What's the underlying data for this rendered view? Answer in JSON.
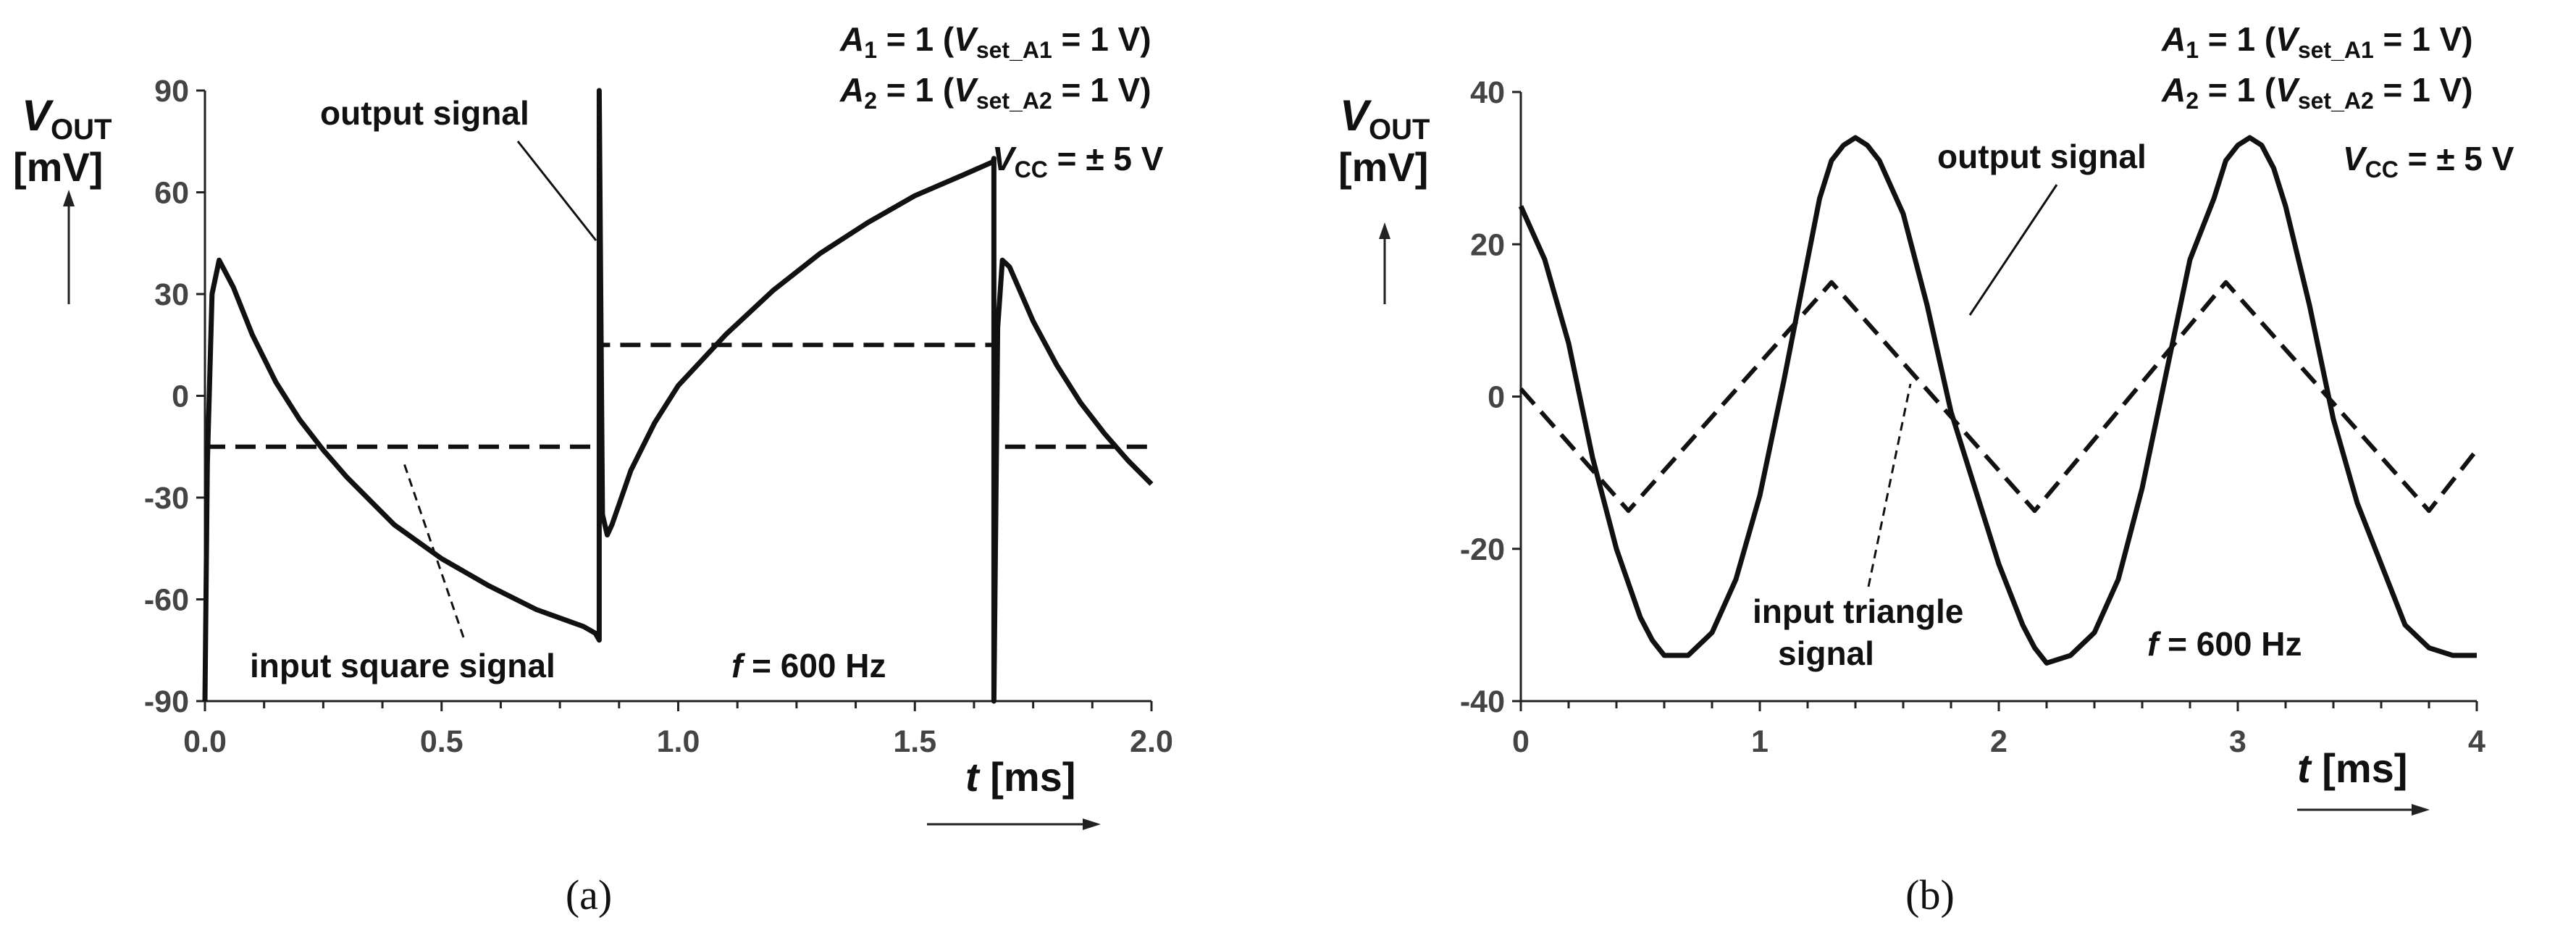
{
  "chart_data": [
    {
      "type": "line",
      "caption": "(a)",
      "xlabel": {
        "var": "t",
        "unit": "[ms]"
      },
      "ylabel": {
        "var": "V",
        "sub": "OUT",
        "unit": "[mV]"
      },
      "xlim": [
        0,
        2.0
      ],
      "ylim": [
        -90,
        90
      ],
      "xticks": [
        0.0,
        0.5,
        1.0,
        1.5,
        2.0
      ],
      "xtick_labels": [
        "0.0",
        "0.5",
        "1.0",
        "1.5",
        "2.0"
      ],
      "yticks": [
        -90,
        -60,
        -30,
        0,
        30,
        60,
        90
      ],
      "ytick_labels": [
        "-90",
        "-60",
        "-30",
        "0",
        "30",
        "60",
        "90"
      ],
      "conditions": [
        {
          "a": "A",
          "asub": "1",
          "eq": " = 1 (",
          "v": "V",
          "vsub": "set_A1",
          "tail": " = 1 V)"
        },
        {
          "a": "A",
          "asub": "2",
          "eq": " = 1 (",
          "v": "V",
          "vsub": "set_A2",
          "tail": " = 1 V)"
        }
      ],
      "vcc": {
        "v": "V",
        "sub": "CC",
        "tail": " = ± 5 V"
      },
      "freq": {
        "f": "f",
        "tail": " = 600 Hz"
      },
      "annotations": [
        {
          "text": "output signal",
          "target_x": 0.833,
          "target_y": 30
        },
        {
          "text": "input square signal",
          "target_x": 0.42,
          "target_y": -14
        }
      ],
      "series": [
        {
          "name": "output signal",
          "style": "solid",
          "x": [
            0,
            0.005,
            0.015,
            0.03,
            0.06,
            0.1,
            0.15,
            0.2,
            0.25,
            0.3,
            0.4,
            0.5,
            0.6,
            0.7,
            0.8,
            0.825,
            0.833,
            0.833,
            0.838,
            0.84,
            0.85,
            0.86,
            0.88,
            0.9,
            0.95,
            1.0,
            1.1,
            1.2,
            1.3,
            1.4,
            1.5,
            1.6,
            1.665,
            1.667,
            1.667,
            1.675,
            1.685,
            1.7,
            1.75,
            1.8,
            1.85,
            1.9,
            1.95,
            2.0
          ],
          "y": [
            -90,
            -20,
            30,
            40,
            32,
            18,
            4,
            -7,
            -16,
            -24,
            -38,
            -48,
            -56,
            -63,
            -68,
            -70,
            -72,
            90,
            0,
            -35,
            -41,
            -38,
            -30,
            -22,
            -8,
            3,
            18,
            31,
            42,
            51,
            59,
            65,
            69,
            70,
            -90,
            20,
            40,
            38,
            22,
            9,
            -2,
            -11,
            -19,
            -26
          ]
        },
        {
          "name": "input square signal",
          "style": "dashed",
          "x": [
            0,
            0.833,
            0.833,
            1.667,
            1.667,
            2.0
          ],
          "y": [
            -15,
            -15,
            15,
            15,
            -15,
            -15
          ]
        }
      ]
    },
    {
      "type": "line",
      "caption": "(b)",
      "xlabel": {
        "var": "t",
        "unit": "[ms]"
      },
      "ylabel": {
        "var": "V",
        "sub": "OUT",
        "unit": "[mV]"
      },
      "xlim": [
        0,
        4
      ],
      "ylim": [
        -40,
        40
      ],
      "xticks": [
        0,
        1,
        2,
        3,
        4
      ],
      "xtick_labels": [
        "0",
        "1",
        "2",
        "3",
        "4"
      ],
      "yticks": [
        -40,
        -20,
        0,
        20,
        40
      ],
      "ytick_labels": [
        "-40",
        "-20",
        "0",
        "20",
        "40"
      ],
      "conditions": [
        {
          "a": "A",
          "asub": "1",
          "eq": " = 1 (",
          "v": "V",
          "vsub": "set_A1",
          "tail": " = 1 V)"
        },
        {
          "a": "A",
          "asub": "2",
          "eq": " = 1 (",
          "v": "V",
          "vsub": "set_A2",
          "tail": " = 1 V)"
        }
      ],
      "vcc": {
        "v": "V",
        "sub": "CC",
        "tail": " = ± 5 V"
      },
      "freq": {
        "f": "f",
        "tail": " = 600 Hz"
      },
      "annotations": [
        {
          "text": "output signal",
          "target_x": 1.8,
          "target_y": 10
        },
        {
          "text": "input triangle signal",
          "target_x": 1.65,
          "target_y": 5
        }
      ],
      "series": [
        {
          "name": "output signal",
          "style": "solid",
          "x": [
            0,
            0.1,
            0.2,
            0.3,
            0.4,
            0.5,
            0.55,
            0.6,
            0.7,
            0.8,
            0.9,
            1.0,
            1.1,
            1.2,
            1.25,
            1.3,
            1.35,
            1.4,
            1.45,
            1.5,
            1.6,
            1.7,
            1.8,
            1.9,
            2.0,
            2.1,
            2.15,
            2.2,
            2.3,
            2.4,
            2.5,
            2.6,
            2.7,
            2.8,
            2.9,
            2.95,
            3.0,
            3.05,
            3.1,
            3.15,
            3.2,
            3.3,
            3.4,
            3.5,
            3.6,
            3.7,
            3.8,
            3.9,
            4.0
          ],
          "y": [
            25,
            18,
            7,
            -8,
            -20,
            -29,
            -32,
            -34,
            -34,
            -31,
            -24,
            -13,
            2,
            18,
            26,
            31,
            33,
            34,
            33,
            31,
            24,
            12,
            -2,
            -12,
            -22,
            -30,
            -33,
            -35,
            -34,
            -31,
            -24,
            -12,
            3,
            18,
            26,
            31,
            33,
            34,
            33,
            30,
            25,
            12,
            -3,
            -14,
            -22,
            -30,
            -33,
            -34,
            -34
          ]
        },
        {
          "name": "input triangle signal",
          "style": "dashed",
          "x": [
            0,
            0.45,
            1.3,
            2.15,
            2.95,
            3.8,
            4.0
          ],
          "y": [
            1,
            -15,
            15,
            -15,
            15,
            -15,
            -7
          ]
        }
      ]
    }
  ]
}
